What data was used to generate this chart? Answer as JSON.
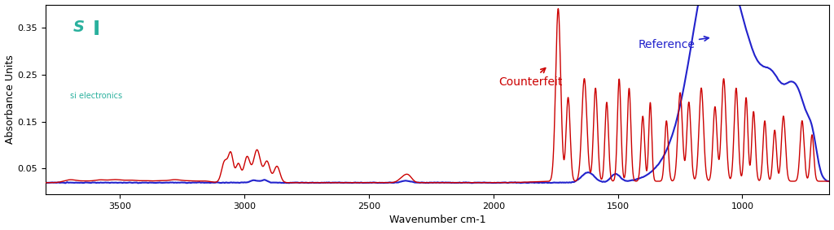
{
  "xlabel": "Wavenumber cm-1",
  "ylabel": "Absorbance Units",
  "xlim": [
    3800,
    650
  ],
  "ylim": [
    -0.005,
    0.4
  ],
  "yticks": [
    0.05,
    0.15,
    0.25,
    0.35
  ],
  "xticks": [
    3500,
    3000,
    2500,
    2000,
    1500,
    1000
  ],
  "ref_color": "#2222cc",
  "counterfeit_color": "#cc0000",
  "teal_color": "#29b09d",
  "background": "#ffffff",
  "logo_subtext": "si electronics",
  "annotation_ref": "Reference",
  "annotation_counterfeit": "Counterfeit"
}
